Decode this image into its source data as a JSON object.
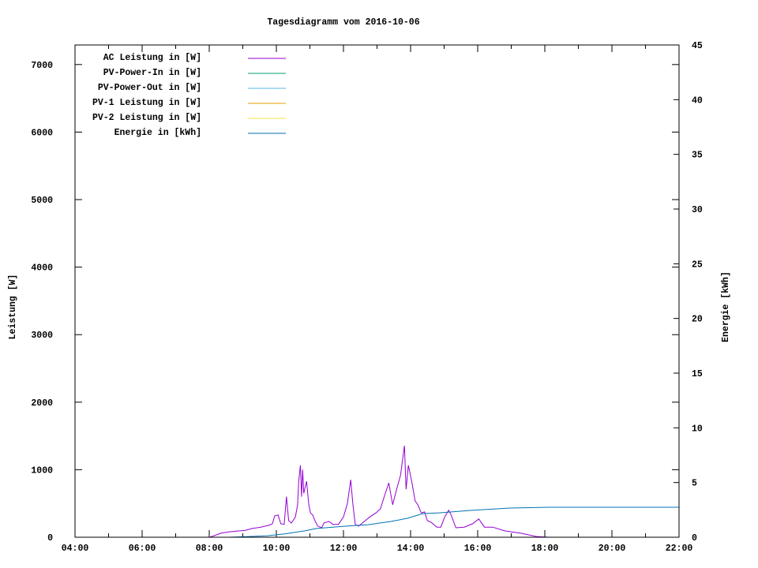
{
  "chart_data": {
    "type": "line",
    "title": "Tagesdiagramm vom 2016-10-06",
    "ylabel": "Leistung [W]",
    "y2label": "Energie [kWh]",
    "xlim": [
      "04:00",
      "22:00"
    ],
    "ylim": [
      0,
      7290
    ],
    "y2lim": [
      0,
      45
    ],
    "xticks": [
      "04:00",
      "06:00",
      "08:00",
      "10:00",
      "12:00",
      "14:00",
      "16:00",
      "18:00",
      "20:00",
      "22:00"
    ],
    "yticks": [
      "0",
      "1000",
      "2000",
      "3000",
      "4000",
      "5000",
      "6000",
      "7000"
    ],
    "y2ticks": [
      "0",
      "5",
      "10",
      "15",
      "20",
      "25",
      "30",
      "35",
      "40",
      "45"
    ],
    "grid": false,
    "legend_position": "top-left",
    "series": [
      {
        "name": "AC Leistung in [W]",
        "axis": "y",
        "color": "#9400d3",
        "x": [
          "08:01",
          "08:21",
          "08:35",
          "08:49",
          "09:04",
          "09:17",
          "09:32",
          "09:46",
          "09:53",
          "09:57",
          "10:03",
          "10:08",
          "10:14",
          "10:18",
          "10:22",
          "10:27",
          "10:34",
          "10:38",
          "10:40",
          "10:43",
          "10:45",
          "10:47",
          "10:49",
          "10:54",
          "10:58",
          "11:01",
          "11:05",
          "11:09",
          "11:14",
          "11:21",
          "11:25",
          "11:34",
          "11:41",
          "11:51",
          "12:00",
          "12:07",
          "12:13",
          "12:17",
          "12:21",
          "12:27",
          "12:35",
          "12:47",
          "12:58",
          "13:06",
          "13:14",
          "13:21",
          "13:28",
          "13:35",
          "13:42",
          "13:49",
          "13:52",
          "13:56",
          "14:02",
          "14:08",
          "14:13",
          "14:19",
          "14:25",
          "14:30",
          "14:37",
          "14:47",
          "14:54",
          "15:01",
          "15:08",
          "15:12",
          "15:21",
          "15:36",
          "15:51",
          "16:02",
          "16:12",
          "16:27",
          "16:48",
          "17:17",
          "17:45",
          "18:08"
        ],
        "values": [
          0,
          60,
          80,
          90,
          100,
          130,
          150,
          175,
          200,
          315,
          330,
          200,
          190,
          600,
          245,
          210,
          300,
          480,
          830,
          1065,
          600,
          1000,
          650,
          830,
          480,
          360,
          330,
          245,
          165,
          140,
          210,
          235,
          190,
          190,
          300,
          500,
          850,
          480,
          190,
          165,
          220,
          300,
          360,
          420,
          630,
          805,
          480,
          710,
          920,
          1355,
          710,
          1065,
          830,
          540,
          480,
          360,
          375,
          245,
          220,
          150,
          150,
          300,
          400,
          340,
          140,
          150,
          200,
          270,
          150,
          150,
          95,
          60,
          10,
          0
        ]
      },
      {
        "name": "PV-Power-In in [W]",
        "axis": "y",
        "color": "#009e73",
        "x": [],
        "values": []
      },
      {
        "name": "PV-Power-Out in [W]",
        "axis": "y",
        "color": "#56b4e9",
        "x": [],
        "values": []
      },
      {
        "name": "PV-1 Leistung in [W]",
        "axis": "y",
        "color": "#e69f00",
        "x": [],
        "values": []
      },
      {
        "name": "PV-2 Leistung in [W]",
        "axis": "y",
        "color": "#f0e442",
        "x": [],
        "values": []
      },
      {
        "name": "Energie in [kWh]",
        "axis": "y2",
        "color": "#0072b2",
        "x": [
          "08:35",
          "09:16",
          "09:44",
          "10:15",
          "10:50",
          "11:12",
          "12:01",
          "12:44",
          "13:26",
          "13:54",
          "14:22",
          "14:51",
          "15:47",
          "16:58",
          "18:08",
          "22:00"
        ],
        "values": [
          0,
          0.07,
          0.14,
          0.3,
          0.58,
          0.8,
          1.0,
          1.15,
          1.45,
          1.73,
          2.16,
          2.23,
          2.45,
          2.67,
          2.74,
          2.74
        ]
      }
    ]
  }
}
